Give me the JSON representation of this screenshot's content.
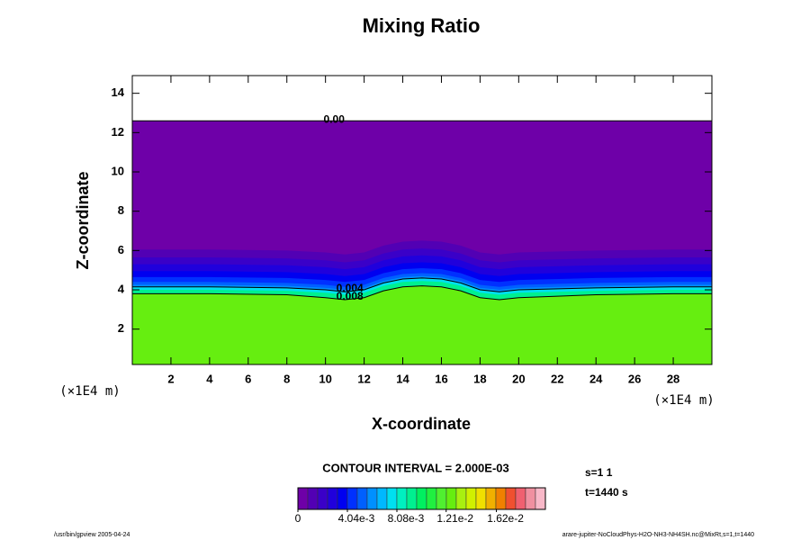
{
  "chart_data": {
    "type": "contour",
    "title": "Mixing Ratio",
    "x_label": "X-coordinate",
    "y_label": "Z-coordinate",
    "x_unit": "(×1E4 m)",
    "y_unit": "(×1E4 m)",
    "xlim": [
      0,
      30
    ],
    "ylim": [
      0.2,
      14.9
    ],
    "xticks": [
      2,
      4,
      6,
      8,
      10,
      12,
      14,
      16,
      18,
      20,
      22,
      24,
      26,
      28
    ],
    "yticks": [
      2,
      4,
      6,
      8,
      10,
      12,
      14
    ],
    "domain_top": 12.6,
    "contours": [
      {
        "level": 0,
        "label": "0.00",
        "x": [
          0,
          30
        ],
        "y": [
          12.6,
          12.6
        ]
      },
      {
        "level": 0.004,
        "label": "0.004",
        "x": [
          0,
          4,
          8,
          10,
          11,
          12,
          13,
          14,
          15,
          16,
          17,
          18,
          19,
          20,
          24,
          28,
          30
        ],
        "y": [
          4.15,
          4.15,
          4.1,
          4.0,
          3.9,
          4.0,
          4.35,
          4.55,
          4.6,
          4.55,
          4.35,
          4.0,
          3.9,
          4.0,
          4.1,
          4.15,
          4.15
        ]
      },
      {
        "level": 0.008,
        "label": "0.008",
        "x": [
          0,
          4,
          8,
          10,
          11,
          12,
          13,
          14,
          15,
          16,
          17,
          18,
          19,
          20,
          24,
          28,
          30
        ],
        "y": [
          3.8,
          3.8,
          3.75,
          3.6,
          3.5,
          3.6,
          3.95,
          4.15,
          4.2,
          4.15,
          3.95,
          3.6,
          3.5,
          3.6,
          3.75,
          3.8,
          3.8
        ]
      }
    ],
    "colormap": [
      "#6e00a8",
      "#5200b4",
      "#3a00c8",
      "#2000dc",
      "#0000f0",
      "#0030ff",
      "#0060ff",
      "#0090ff",
      "#00b8ff",
      "#00e0f0",
      "#00f0c0",
      "#00f090",
      "#00f060",
      "#20f040",
      "#50f030",
      "#66ee10",
      "#a8f010",
      "#d0f000",
      "#f0e000",
      "#f0b000",
      "#f08000",
      "#f05030",
      "#f06070",
      "#f090a0",
      "#f8b8c8"
    ],
    "colorbar_lim": [
      0,
      0.0202
    ],
    "colorbar_ticks": [
      0,
      {
        "value": 0.00404,
        "label": "4.04e-3"
      },
      {
        "value": 0.00808,
        "label": "8.08e-3"
      },
      {
        "value": 0.0121,
        "label": "1.21e-2"
      },
      {
        "value": 0.0162,
        "label": "1.62e-2"
      }
    ],
    "contour_interval": "CONTOUR INTERVAL = 2.000E-03",
    "notes": [
      "s=1 1",
      "t=1440 s"
    ],
    "footer_left": "/usr/bin/gpview 2005-04-24",
    "footer_right": "arare-jupiter-NoCloudPhys-H2O-NH3-NH4SH.nc@MixRt,s=1,t=1440"
  }
}
